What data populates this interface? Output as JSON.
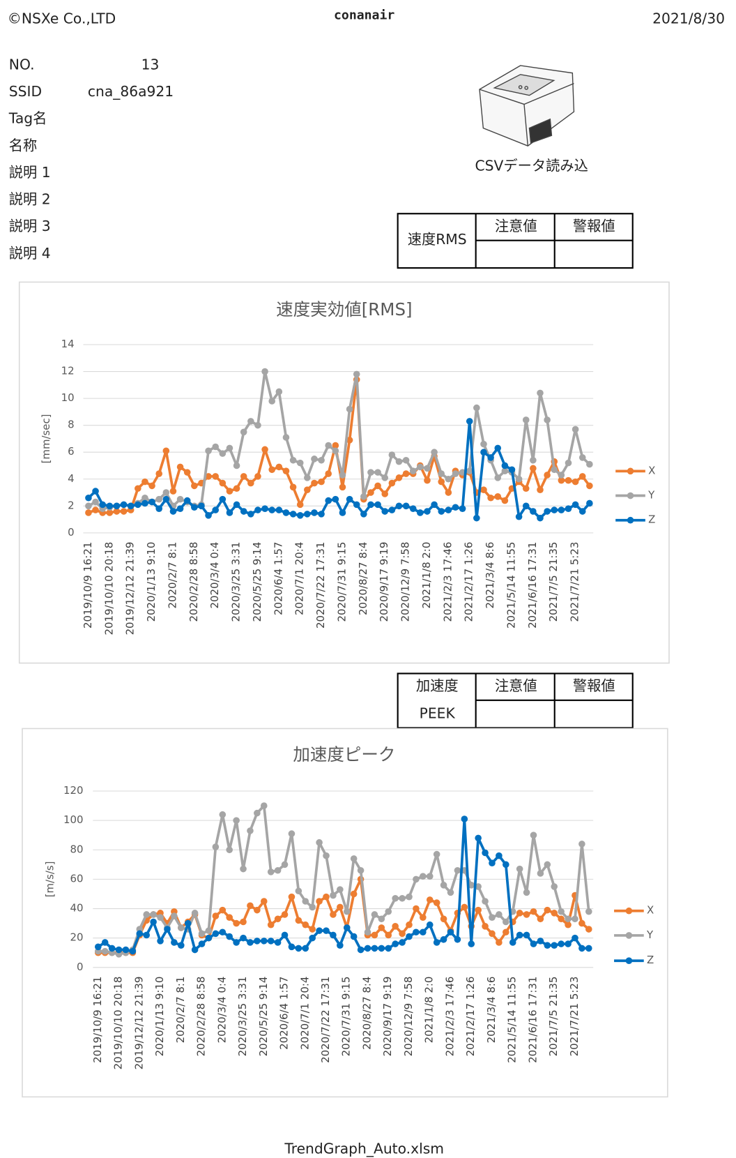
{
  "header": {
    "copyright": "©NSXe Co.,LTD",
    "title": "conanair",
    "date": "2021/8/30"
  },
  "info": [
    {
      "label": "NO.",
      "value": "13"
    },
    {
      "label": "SSID",
      "value": "cna_86a921"
    },
    {
      "label": "Tag名"
    },
    {
      "label": "名称"
    },
    {
      "label": "説明 1"
    },
    {
      "label": "説明 2"
    },
    {
      "label": "説明 3"
    },
    {
      "label": "説明 4"
    }
  ],
  "device_caption": "CSVデータ読み込",
  "rms_table": {
    "header": "速度RMS",
    "columns": [
      "注意値",
      "警報値"
    ]
  },
  "peak_table": {
    "header": [
      "加速度",
      "PEEK"
    ],
    "columns": [
      "注意値",
      "警報値"
    ]
  },
  "footer": "TrendGraph_Auto.xlsm",
  "chart_data": [
    {
      "type": "line",
      "title": "速度実効値[RMS]",
      "ylabel": "[mm/sec]",
      "legend": "right",
      "grid": true,
      "ylim": [
        0,
        14
      ],
      "yticks": [
        0,
        2,
        4,
        6,
        8,
        10,
        12,
        14
      ],
      "categories": [
        "2019/10/9 16:21",
        null,
        null,
        "2019/10/10 20:18",
        null,
        null,
        "2019/12/12 21:39",
        null,
        null,
        "2020/1/13 9:10",
        null,
        null,
        "2020/2/7 8:1",
        null,
        null,
        "2020/2/28 8:58",
        null,
        null,
        "2020/3/4 0:4",
        null,
        null,
        "2020/3/25 3:31",
        null,
        null,
        "2020/5/25 9:14",
        null,
        null,
        "2020/6/4 1:57",
        null,
        null,
        "2020/7/1 20:4",
        null,
        null,
        "2020/7/22 17:31",
        null,
        null,
        "2020/7/31 9:15",
        null,
        null,
        "2020/8/27 8:4",
        null,
        null,
        "2020/9/17 9:19",
        null,
        null,
        "2020/12/9 7:58",
        null,
        null,
        "2021/1/8 2:0",
        null,
        null,
        "2021/2/3 17:46",
        null,
        null,
        "2021/2/17 1:26",
        null,
        null,
        "2021/3/4 8:6",
        null,
        null,
        "2021/5/14 11:55",
        null,
        null,
        "2021/6/16 17:31",
        null,
        null,
        "2021/7/5 21:35",
        null,
        null,
        "2021/7/21 5:23",
        null,
        null
      ],
      "series": [
        {
          "name": "X",
          "color": "#ed7d31",
          "values": [
            1.5,
            1.7,
            1.5,
            1.5,
            1.6,
            1.6,
            1.7,
            3.3,
            3.8,
            3.5,
            4.4,
            6.1,
            3.1,
            4.9,
            4.5,
            3.5,
            3.7,
            4.2,
            4.2,
            3.7,
            3.1,
            3.3,
            4.2,
            3.7,
            4.2,
            6.2,
            4.7,
            4.9,
            4.6,
            3.4,
            2.1,
            3.2,
            3.7,
            3.8,
            4.4,
            6.5,
            3.4,
            6.9,
            11.4,
            2.5,
            3.0,
            3.5,
            2.9,
            3.7,
            4.1,
            4.4,
            4.4,
            5.0,
            3.9,
            5.7,
            3.8,
            3.0,
            4.6,
            4.3,
            4.5,
            3.0,
            3.2,
            2.6,
            2.7,
            2.4,
            3.3,
            3.8,
            3.3,
            4.8,
            3.2,
            4.3,
            5.3,
            3.9,
            3.9,
            3.8,
            4.2,
            3.5
          ]
        },
        {
          "name": "Y",
          "color": "#a5a5a5",
          "values": [
            2.0,
            2.3,
            1.8,
            1.9,
            2.0,
            2.1,
            2.0,
            2.2,
            2.6,
            2.3,
            2.5,
            3.0,
            2.0,
            2.5,
            2.3,
            2.0,
            2.1,
            6.1,
            6.4,
            5.9,
            6.3,
            5.0,
            7.5,
            8.3,
            8.0,
            12.0,
            9.8,
            10.5,
            7.1,
            5.4,
            5.2,
            4.1,
            5.5,
            5.4,
            6.5,
            6.1,
            4.3,
            9.2,
            11.8,
            2.7,
            4.5,
            4.5,
            4.1,
            5.8,
            5.3,
            5.4,
            4.6,
            4.9,
            4.8,
            6.0,
            4.4,
            4.0,
            4.4,
            4.5,
            4.6,
            9.3,
            6.6,
            5.4,
            4.1,
            4.6,
            4.5,
            4.0,
            8.4,
            5.4,
            10.4,
            8.4,
            4.7,
            4.3,
            5.2,
            7.7,
            5.6,
            5.1
          ]
        },
        {
          "name": "Z",
          "color": "#0070c0",
          "values": [
            2.6,
            3.1,
            2.1,
            2.0,
            2.0,
            2.1,
            2.0,
            2.1,
            2.2,
            2.3,
            1.8,
            2.5,
            1.6,
            1.8,
            2.4,
            1.9,
            2.0,
            1.3,
            1.7,
            2.5,
            1.5,
            2.1,
            1.6,
            1.4,
            1.7,
            1.8,
            1.7,
            1.7,
            1.5,
            1.4,
            1.3,
            1.4,
            1.5,
            1.4,
            2.4,
            2.5,
            1.5,
            2.5,
            2.1,
            1.4,
            2.1,
            2.1,
            1.6,
            1.7,
            2.0,
            2.0,
            1.8,
            1.5,
            1.6,
            2.1,
            1.6,
            1.7,
            1.9,
            1.8,
            8.3,
            1.1,
            6.0,
            5.6,
            6.3,
            5.0,
            4.7,
            1.2,
            2.0,
            1.6,
            1.1,
            1.6,
            1.7,
            1.7,
            1.8,
            2.1,
            1.6,
            2.2
          ]
        }
      ]
    },
    {
      "type": "line",
      "title": "加速度ピーク",
      "ylabel": "[m/s/s]",
      "legend": "right",
      "grid": true,
      "ylim": [
        0,
        120
      ],
      "yticks": [
        0,
        20,
        40,
        60,
        80,
        100,
        120
      ],
      "categories": [
        "2019/10/9 16:21",
        null,
        null,
        "2019/10/10 20:18",
        null,
        null,
        "2019/12/12 21:39",
        null,
        null,
        "2020/1/13 9:10",
        null,
        null,
        "2020/2/7 8:1",
        null,
        null,
        "2020/2/28 8:58",
        null,
        null,
        "2020/3/4 0:4",
        null,
        null,
        "2020/3/25 3:31",
        null,
        null,
        "2020/5/25 9:14",
        null,
        null,
        "2020/6/4 1:57",
        null,
        null,
        "2020/7/1 20:4",
        null,
        null,
        "2020/7/22 17:31",
        null,
        null,
        "2020/7/31 9:15",
        null,
        null,
        "2020/8/27 8:4",
        null,
        null,
        "2020/9/17 9:19",
        null,
        null,
        "2020/12/9 7:58",
        null,
        null,
        "2021/1/8 2:0",
        null,
        null,
        "2021/2/3 17:46",
        null,
        null,
        "2021/2/17 1:26",
        null,
        null,
        "2021/3/4 8:6",
        null,
        null,
        "2021/5/14 11:55",
        null,
        null,
        "2021/6/16 17:31",
        null,
        null,
        "2021/7/5 21:35",
        null,
        null,
        "2021/7/21 5:23",
        null,
        null
      ],
      "series": [
        {
          "name": "X",
          "color": "#ed7d31",
          "values": [
            10,
            10,
            10,
            10,
            10,
            10,
            22,
            32,
            36,
            37,
            30,
            38,
            27,
            31,
            36,
            22,
            20,
            35,
            39,
            34,
            30,
            31,
            42,
            39,
            45,
            29,
            33,
            36,
            48,
            32,
            29,
            26,
            45,
            48,
            36,
            41,
            27,
            50,
            60,
            22,
            22,
            27,
            22,
            28,
            23,
            29,
            40,
            34,
            46,
            44,
            33,
            25,
            37,
            41,
            28,
            39,
            28,
            23,
            17,
            24,
            31,
            37,
            36,
            38,
            33,
            39,
            37,
            33,
            29,
            49,
            30,
            26
          ]
        },
        {
          "name": "Y",
          "color": "#a5a5a5",
          "values": [
            11,
            11,
            10,
            9,
            10,
            12,
            26,
            36,
            36,
            34,
            27,
            35,
            27,
            26,
            37,
            23,
            25,
            82,
            104,
            80,
            100,
            67,
            93,
            105,
            110,
            65,
            66,
            70,
            91,
            52,
            45,
            41,
            85,
            76,
            49,
            53,
            38,
            74,
            66,
            24,
            36,
            33,
            38,
            47,
            47,
            48,
            60,
            62,
            62,
            77,
            56,
            51,
            66,
            66,
            56,
            55,
            45,
            34,
            36,
            31,
            38,
            67,
            51,
            90,
            64,
            70,
            55,
            38,
            33,
            33,
            84,
            38
          ]
        },
        {
          "name": "Z",
          "color": "#0070c0",
          "values": [
            14,
            17,
            13,
            12,
            12,
            11,
            23,
            22,
            31,
            18,
            26,
            17,
            15,
            30,
            12,
            16,
            20,
            23,
            24,
            21,
            17,
            20,
            17,
            18,
            18,
            18,
            17,
            22,
            14,
            13,
            13,
            20,
            25,
            25,
            22,
            15,
            27,
            21,
            12,
            13,
            13,
            13,
            13,
            16,
            17,
            21,
            24,
            24,
            29,
            17,
            19,
            24,
            19,
            101,
            16,
            88,
            78,
            71,
            76,
            70,
            17,
            22,
            22,
            16,
            18,
            15,
            15,
            16,
            16,
            20,
            13,
            13
          ]
        }
      ]
    }
  ]
}
